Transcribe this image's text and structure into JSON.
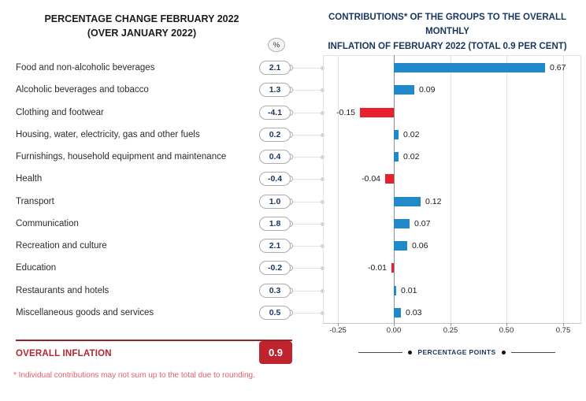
{
  "colors": {
    "positive_bar": "#2189c9",
    "negative_bar": "#e8202e",
    "overall_box_red": "#bf232e",
    "navy": "#17375e",
    "footnote_red": "#e4606b"
  },
  "left_panel": {
    "title_line1": "PERCENTAGE CHANGE FEBRUARY 2022",
    "title_line2": "(OVER JANUARY 2022)",
    "unit_badge": "%",
    "rows": [
      {
        "label": "Food and non-alcoholic beverages",
        "value": "2.1"
      },
      {
        "label": "Alcoholic beverages and tobacco",
        "value": "1.3"
      },
      {
        "label": "Clothing and footwear",
        "value": "-4.1"
      },
      {
        "label": "Housing, water, electricity, gas and other fuels",
        "value": "0.2"
      },
      {
        "label": "Furnishings, household equipment and maintenance",
        "value": "0.4"
      },
      {
        "label": "Health",
        "value": "-0.4"
      },
      {
        "label": "Transport",
        "value": "1.0"
      },
      {
        "label": "Communication",
        "value": "1.8"
      },
      {
        "label": "Recreation and culture",
        "value": "2.1"
      },
      {
        "label": "Education",
        "value": "-0.2"
      },
      {
        "label": "Restaurants and hotels",
        "value": "0.3"
      },
      {
        "label": "Miscellaneous goods and services",
        "value": "0.5"
      }
    ],
    "overall": {
      "label": "OVERALL INFLATION",
      "value": "0.9"
    },
    "footnote": "* Individual contributions may not sum up to the total due to rounding."
  },
  "right_panel": {
    "title_line1": "CONTRIBUTIONS* OF THE GROUPS TO THE OVERALL MONTHLY",
    "title_line2": "INFLATION OF FEBRUARY 2022 (TOTAL 0.9 PER CENT)",
    "axis_label": "PERCENTAGE POINTS"
  },
  "chart_data": {
    "type": "bar",
    "orientation": "horizontal",
    "title": "CONTRIBUTIONS* OF THE GROUPS TO THE OVERALL MONTHLY INFLATION OF FEBRUARY 2022 (TOTAL 0.9 PER CENT)",
    "xlabel": "PERCENTAGE POINTS",
    "categories": [
      "Food and non-alcoholic beverages",
      "Alcoholic beverages and tobacco",
      "Clothing and footwear",
      "Housing, water, electricity, gas and other fuels",
      "Furnishings, household equipment and maintenance",
      "Health",
      "Transport",
      "Communication",
      "Recreation and culture",
      "Education",
      "Restaurants and hotels",
      "Miscellaneous goods and services"
    ],
    "values": [
      0.67,
      0.09,
      -0.15,
      0.02,
      0.02,
      -0.04,
      0.12,
      0.07,
      0.06,
      -0.01,
      0.01,
      0.03
    ],
    "value_labels": [
      "0.67",
      "0.09",
      "-0.15",
      "0.02",
      "0.02",
      "-0.04",
      "0.12",
      "0.07",
      "0.06",
      "-0.01",
      "0.01",
      "0.03"
    ],
    "x_tick_values": [
      -0.25,
      0,
      0.25,
      0.5,
      0.75
    ],
    "x_tick_labels": [
      "-0.25",
      "0.00",
      "0.25",
      "0.50",
      "0.75"
    ],
    "xlim": [
      -0.315,
      0.832
    ],
    "grid": true,
    "total": 0.9,
    "bar_color_positive": "#2189c9",
    "bar_color_negative": "#e8202e",
    "legend": null
  }
}
